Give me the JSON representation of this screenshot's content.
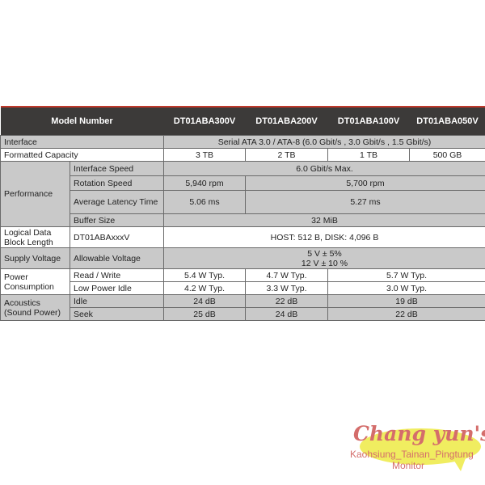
{
  "header": {
    "model_label": "Model Number",
    "models": [
      "DT01ABA300V",
      "DT01ABA200V",
      "DT01ABA100V",
      "DT01ABA050V"
    ]
  },
  "rows": {
    "interface": {
      "label": "Interface",
      "value": "Serial ATA 3.0 / ATA-8 (6.0 Gbit/s , 3.0 Gbit/s , 1.5 Gbit/s)"
    },
    "capacity": {
      "label": "Formatted Capacity",
      "values": [
        "3 TB",
        "2 TB",
        "1 TB",
        "500 GB"
      ]
    },
    "performance": {
      "label": "Performance",
      "interface_speed": {
        "label": "Interface Speed",
        "value": "6.0 Gbit/s Max."
      },
      "rotation": {
        "label": "Rotation Speed",
        "values": [
          "5,940 rpm",
          "5,700 rpm"
        ]
      },
      "latency": {
        "label": "Average Latency Time",
        "values": [
          "5.06 ms",
          "5.27 ms"
        ]
      },
      "buffer": {
        "label": "Buffer Size",
        "value": "32 MiB"
      }
    },
    "logical": {
      "label": "Logical Data Block Length",
      "sub": "DT01ABAxxxV",
      "value": "HOST: 512 B, DISK: 4,096 B"
    },
    "supply": {
      "label": "Supply Voltage",
      "sub": "Allowable Voltage",
      "value1": "5 V ± 5%",
      "value2": "12 V ± 10 %"
    },
    "power": {
      "label": "Power Consumption",
      "rw": {
        "label": "Read / Write",
        "values": [
          "5.4 W Typ.",
          "4.7 W Typ.",
          "5.7 W Typ."
        ]
      },
      "idle": {
        "label": "Low Power Idle",
        "values": [
          "4.2 W Typ.",
          "3.3 W Typ.",
          "3.0 W Typ."
        ]
      }
    },
    "acoustics": {
      "label": "Acoustics (Sound Power)",
      "idle": {
        "label": "Idle",
        "values": [
          "24 dB",
          "22 dB",
          "19 dB"
        ]
      },
      "seek": {
        "label": "Seek",
        "values": [
          "25 dB",
          "24 dB",
          "22 dB"
        ]
      }
    }
  },
  "watermark": {
    "brand": "Chang yun's",
    "line1": "Kaohsiung_Tainan_Pingtung",
    "line2": "Monitor"
  },
  "colors": {
    "header_bg": "#3c3a39",
    "header_accent": "#c0392b",
    "row_gray": "#c9c9c9",
    "watermark_text": "#d46d6b",
    "watermark_bubble": "#f0ed60"
  }
}
